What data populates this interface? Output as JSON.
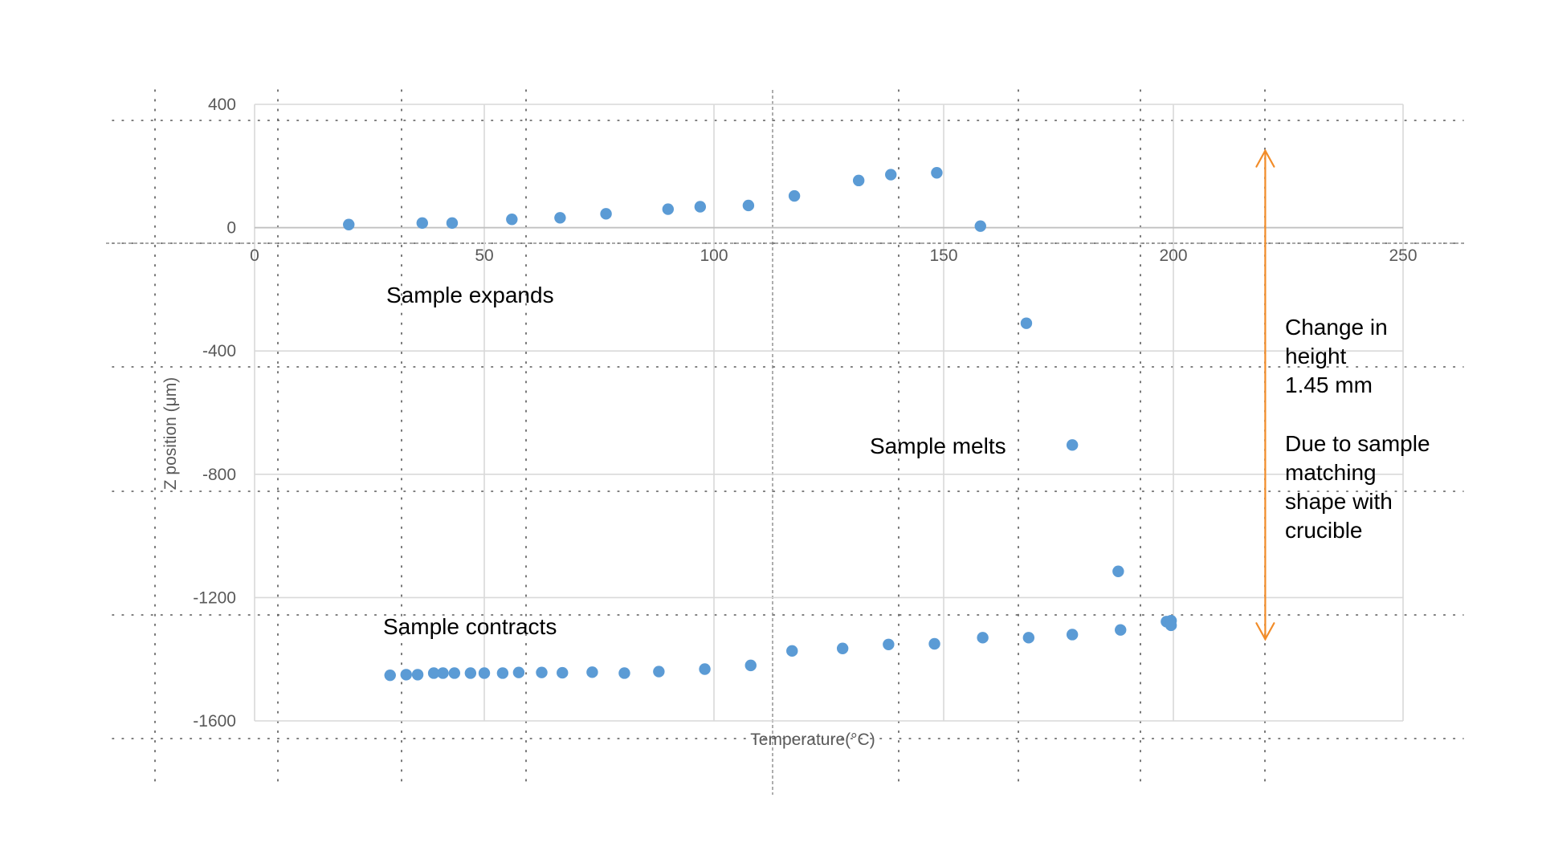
{
  "chart_data": {
    "type": "scatter",
    "title": "",
    "xlabel": "Temperature(°C)",
    "ylabel": "Z position (μm)",
    "xlim": [
      0,
      250
    ],
    "ylim": [
      -1600,
      400
    ],
    "x_ticks": [
      "0",
      "50",
      "100",
      "150",
      "200",
      "250"
    ],
    "y_ticks": [
      "400",
      "0",
      "-400",
      "-800",
      "-1200",
      "-1600"
    ],
    "grid": true,
    "legend": "none",
    "series": [
      {
        "color": "#5B9BD5",
        "points": [
          [
            20.5,
            10
          ],
          [
            36.5,
            15
          ],
          [
            43,
            15
          ],
          [
            56,
            27
          ],
          [
            66.5,
            32
          ],
          [
            76.5,
            45
          ],
          [
            90,
            60
          ],
          [
            97,
            68
          ],
          [
            107.5,
            72
          ],
          [
            117.5,
            103
          ],
          [
            131.5,
            153
          ],
          [
            138.5,
            172
          ],
          [
            148.5,
            178
          ],
          [
            158,
            5
          ],
          [
            168,
            -310
          ],
          [
            178,
            -705
          ],
          [
            188,
            -1115
          ],
          [
            198.5,
            -1278
          ],
          [
            199.5,
            -1275
          ],
          [
            199.5,
            -1290
          ],
          [
            188.5,
            -1305
          ],
          [
            178,
            -1320
          ],
          [
            168.5,
            -1330
          ],
          [
            158.5,
            -1330
          ],
          [
            148,
            -1350
          ],
          [
            138,
            -1352
          ],
          [
            128,
            -1365
          ],
          [
            117,
            -1373
          ],
          [
            108,
            -1420
          ],
          [
            98,
            -1432
          ],
          [
            88,
            -1440
          ],
          [
            80.5,
            -1445
          ],
          [
            73.5,
            -1442
          ],
          [
            67,
            -1444
          ],
          [
            62.5,
            -1443
          ],
          [
            57.5,
            -1443
          ],
          [
            54,
            -1445
          ],
          [
            50,
            -1445
          ],
          [
            47,
            -1445
          ],
          [
            43.5,
            -1445
          ],
          [
            41,
            -1445
          ],
          [
            39,
            -1445
          ],
          [
            35.5,
            -1450
          ],
          [
            33,
            -1450
          ],
          [
            29.5,
            -1452
          ]
        ]
      }
    ],
    "annotations": {
      "expands": "Sample expands",
      "contracts": "Sample contracts",
      "melts": "Sample melts",
      "height_lines": [
        "Change in",
        "height",
        "1.45 mm"
      ],
      "reason_lines": [
        "Due to sample",
        "matching",
        "shape with",
        "crucible"
      ]
    },
    "arrow": {
      "color": "#F28C28",
      "x_value": 220,
      "y_from": 250,
      "y_to": -1335
    }
  }
}
